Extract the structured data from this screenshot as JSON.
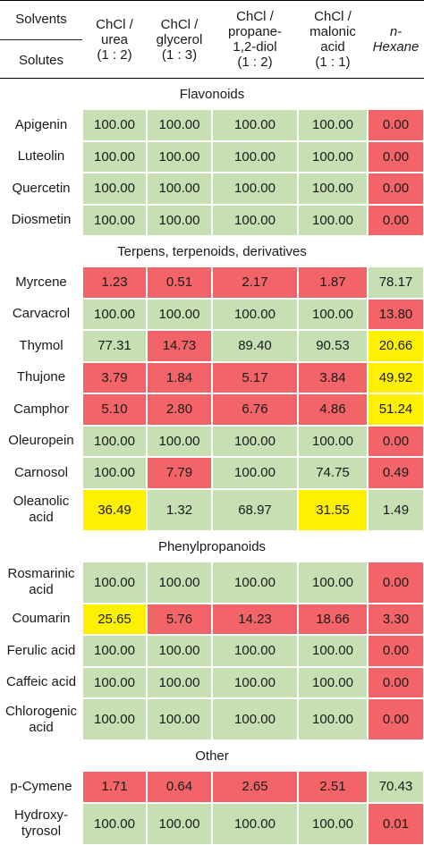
{
  "header": {
    "solvents_label": "Solvents",
    "solutes_label": "Solutes",
    "columns": [
      "ChCl /\nurea\n(1 : 2)",
      "ChCl /\nglycerol\n(1 : 3)",
      "ChCl /\npropane-\n1,2-diol\n(1 : 2)",
      "ChCl /\nmalonic\nacid\n(1 : 1)",
      "n-\nHexane"
    ]
  },
  "colors": {
    "green": "#c6e0b4",
    "red": "#f26467",
    "yellow": "#fdf000"
  },
  "sections": [
    {
      "title": "Flavonoids",
      "rows": [
        {
          "name": "Apigenin",
          "values": [
            "100.00",
            "100.00",
            "100.00",
            "100.00",
            "0.00"
          ],
          "colors": [
            "g",
            "g",
            "g",
            "g",
            "r"
          ]
        },
        {
          "name": "Luteolin",
          "values": [
            "100.00",
            "100.00",
            "100.00",
            "100.00",
            "0.00"
          ],
          "colors": [
            "g",
            "g",
            "g",
            "g",
            "r"
          ]
        },
        {
          "name": "Quercetin",
          "values": [
            "100.00",
            "100.00",
            "100.00",
            "100.00",
            "0.00"
          ],
          "colors": [
            "g",
            "g",
            "g",
            "g",
            "r"
          ]
        },
        {
          "name": "Diosmetin",
          "values": [
            "100.00",
            "100.00",
            "100.00",
            "100.00",
            "0.00"
          ],
          "colors": [
            "g",
            "g",
            "g",
            "g",
            "r"
          ]
        }
      ]
    },
    {
      "title": "Terpens, terpenoids, derivatives",
      "rows": [
        {
          "name": "Myrcene",
          "values": [
            "1.23",
            "0.51",
            "2.17",
            "1.87",
            "78.17"
          ],
          "colors": [
            "r",
            "r",
            "r",
            "r",
            "g"
          ]
        },
        {
          "name": "Carvacrol",
          "values": [
            "100.00",
            "100.00",
            "100.00",
            "100.00",
            "13.80"
          ],
          "colors": [
            "g",
            "g",
            "g",
            "g",
            "r"
          ]
        },
        {
          "name": "Thymol",
          "values": [
            "77.31",
            "14.73",
            "89.40",
            "90.53",
            "20.66"
          ],
          "colors": [
            "g",
            "r",
            "g",
            "g",
            "y"
          ]
        },
        {
          "name": "Thujone",
          "values": [
            "3.79",
            "1.84",
            "5.17",
            "3.84",
            "49.92"
          ],
          "colors": [
            "r",
            "r",
            "r",
            "r",
            "y"
          ]
        },
        {
          "name": "Camphor",
          "values": [
            "5.10",
            "2.80",
            "6.76",
            "4.86",
            "51.24"
          ],
          "colors": [
            "r",
            "r",
            "r",
            "r",
            "y"
          ]
        },
        {
          "name": "Oleuropein",
          "values": [
            "100.00",
            "100.00",
            "100.00",
            "100.00",
            "0.00"
          ],
          "colors": [
            "g",
            "g",
            "g",
            "g",
            "r"
          ]
        },
        {
          "name": "Carnosol",
          "values": [
            "100.00",
            "7.79",
            "100.00",
            "74.75",
            "0.49"
          ],
          "colors": [
            "g",
            "r",
            "g",
            "g",
            "r"
          ]
        },
        {
          "name": "Oleanolic\nacid",
          "values": [
            "36.49",
            "1.32",
            "68.97",
            "31.55",
            "1.49"
          ],
          "colors": [
            "y",
            "g",
            "g",
            "y",
            "g"
          ]
        }
      ]
    },
    {
      "title": "Phenylpropanoids",
      "rows": [
        {
          "name": "Rosmarinic\nacid",
          "values": [
            "100.00",
            "100.00",
            "100.00",
            "100.00",
            "0.00"
          ],
          "colors": [
            "g",
            "g",
            "g",
            "g",
            "r"
          ]
        },
        {
          "name": "Coumarin",
          "values": [
            "25.65",
            "5.76",
            "14.23",
            "18.66",
            "3.30"
          ],
          "colors": [
            "y",
            "r",
            "r",
            "r",
            "r"
          ]
        },
        {
          "name": "Ferulic acid",
          "values": [
            "100.00",
            "100.00",
            "100.00",
            "100.00",
            "0.00"
          ],
          "colors": [
            "g",
            "g",
            "g",
            "g",
            "r"
          ]
        },
        {
          "name": "Caffeic acid",
          "values": [
            "100.00",
            "100.00",
            "100.00",
            "100.00",
            "0.00"
          ],
          "colors": [
            "g",
            "g",
            "g",
            "g",
            "r"
          ]
        },
        {
          "name": "Chlorogenic\nacid",
          "values": [
            "100.00",
            "100.00",
            "100.00",
            "100.00",
            "0.00"
          ],
          "colors": [
            "g",
            "g",
            "g",
            "g",
            "r"
          ]
        }
      ]
    },
    {
      "title": "Other",
      "rows": [
        {
          "name": "p-Cymene",
          "values": [
            "1.71",
            "0.64",
            "2.65",
            "2.51",
            "70.43"
          ],
          "colors": [
            "r",
            "r",
            "r",
            "r",
            "g"
          ]
        },
        {
          "name": "Hydroxy-\ntyrosol",
          "values": [
            "100.00",
            "100.00",
            "100.00",
            "100.00",
            "0.01"
          ],
          "colors": [
            "g",
            "g",
            "g",
            "g",
            "r"
          ]
        }
      ]
    }
  ]
}
